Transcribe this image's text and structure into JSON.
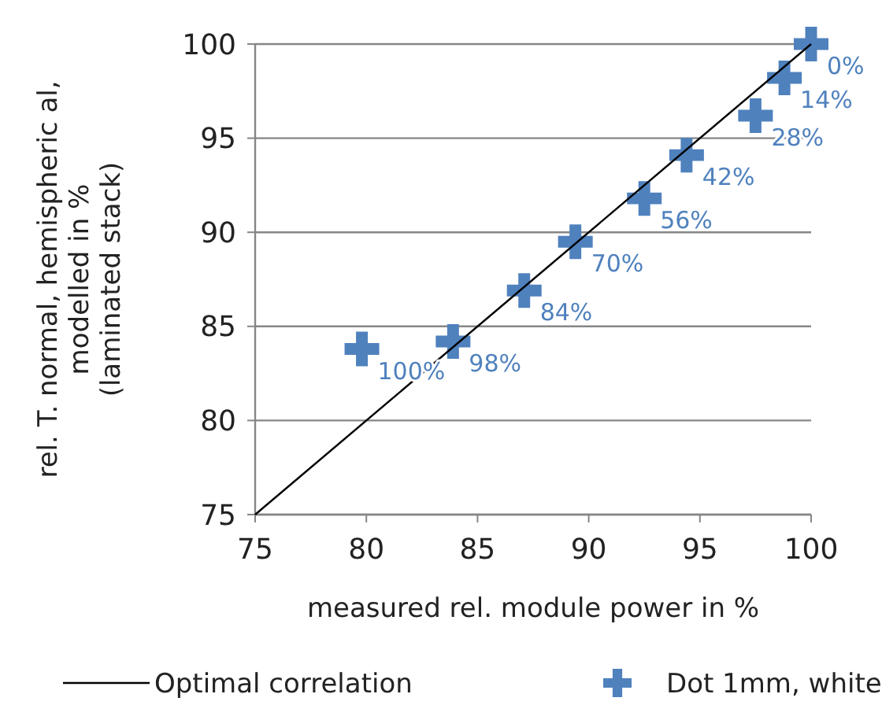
{
  "chart_data": {
    "type": "scatter",
    "xlabel": "measured rel. module power in %",
    "ylabel": "rel. T. normal, hemispheric al,\nmodelled in %\n(laminated stack)",
    "xlim": [
      75,
      100
    ],
    "xticks": [
      75,
      80,
      85,
      90,
      95,
      100
    ],
    "ylim": [
      75,
      100
    ],
    "yticks": [
      75,
      80,
      85,
      90,
      95,
      100
    ],
    "grid": "y",
    "legend": "bottom",
    "marker": "cross",
    "series": [
      {
        "type": "line",
        "name": "Optimal correlation",
        "color": "#000000",
        "x": [
          75,
          100
        ],
        "values": [
          75,
          100
        ],
        "marker": "none",
        "line_style": "solid"
      },
      {
        "name": "Dot 1mm, white",
        "color": "#4f81bd",
        "x": [
          79.8,
          83.9,
          87.1,
          89.4,
          92.5,
          94.4,
          97.5,
          98.8,
          100
        ],
        "values": [
          83.8,
          84.2,
          86.9,
          89.5,
          91.8,
          94.1,
          96.2,
          98.2,
          100
        ]
      }
    ],
    "annotations": [
      {
        "text": "100%",
        "x": 79.8,
        "y": 83.8
      },
      {
        "text": "98%",
        "x": 83.9,
        "y": 84.2
      },
      {
        "text": "84%",
        "x": 87.1,
        "y": 86.9
      },
      {
        "text": "70%",
        "x": 89.4,
        "y": 89.5
      },
      {
        "text": "56%",
        "x": 92.5,
        "y": 91.8
      },
      {
        "text": "42%",
        "x": 94.4,
        "y": 94.1
      },
      {
        "text": "28%",
        "x": 97.5,
        "y": 96.2
      },
      {
        "text": "14%",
        "x": 98.8,
        "y": 98.2
      },
      {
        "text": "0%",
        "x": 100,
        "y": 100
      }
    ]
  }
}
